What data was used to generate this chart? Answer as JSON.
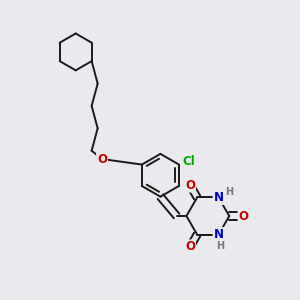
{
  "bg_color": "#eaeaee",
  "bond_color": "#1a1a1a",
  "bond_width": 1.4,
  "atom_colors": {
    "O": "#cc0000",
    "N": "#0000cc",
    "Cl": "#00aa00",
    "H": "#777777",
    "C": "#1a1a1a"
  },
  "font_size_atom": 8.5,
  "font_size_h": 7.0,
  "xlim": [
    0,
    10
  ],
  "ylim": [
    0,
    10
  ]
}
